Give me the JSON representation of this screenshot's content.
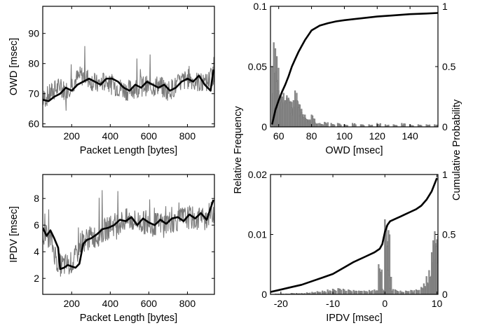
{
  "chart_data": [
    {
      "id": "owd-vs-length",
      "type": "line",
      "xlabel": "Packet Length [bytes]",
      "ylabel": "OWD [msec]",
      "xlim": [
        50,
        940
      ],
      "ylim": [
        59,
        99
      ],
      "xticks": [
        200,
        400,
        600,
        800
      ],
      "yticks": [
        60,
        70,
        80,
        90
      ],
      "grid": false,
      "legend": "none",
      "series": [
        {
          "role": "raw",
          "x": [
            50,
            90,
            130,
            170,
            210,
            250,
            290,
            330,
            370,
            410,
            450,
            490,
            530,
            570,
            610,
            650,
            690,
            730,
            770,
            810,
            850,
            890,
            930
          ],
          "values": [
            68,
            70,
            72,
            71,
            74,
            76,
            75,
            73,
            74,
            73,
            72,
            71,
            72,
            73,
            72,
            73,
            71,
            72,
            74,
            75,
            74,
            73,
            76
          ],
          "spread": 7
        },
        {
          "role": "mean",
          "x": [
            50,
            80,
            110,
            140,
            170,
            200,
            230,
            260,
            290,
            320,
            350,
            380,
            410,
            440,
            470,
            500,
            530,
            560,
            590,
            620,
            650,
            680,
            710,
            740,
            770,
            800,
            830,
            860,
            890,
            920,
            935
          ],
          "values": [
            68,
            67.5,
            69,
            70,
            72,
            71,
            73,
            74,
            75,
            74,
            73,
            75,
            75,
            74,
            72,
            71,
            73,
            72,
            74,
            73,
            72,
            73,
            71,
            72,
            74,
            75,
            74,
            76,
            73,
            71,
            78
          ]
        }
      ]
    },
    {
      "id": "ipdv-vs-length",
      "type": "line",
      "xlabel": "Packet Length [bytes]",
      "ylabel": "IPDV [msec]",
      "xlim": [
        50,
        940
      ],
      "ylim": [
        0.8,
        9.8
      ],
      "xticks": [
        200,
        400,
        600,
        800
      ],
      "yticks": [
        2,
        4,
        6,
        8
      ],
      "grid": false,
      "legend": "none",
      "series": [
        {
          "role": "raw",
          "x": [
            50,
            90,
            130,
            170,
            210,
            250,
            290,
            330,
            370,
            410,
            450,
            490,
            530,
            570,
            610,
            650,
            690,
            730,
            770,
            810,
            850,
            890,
            930
          ],
          "values": [
            5.5,
            5.0,
            3.0,
            3.0,
            3.2,
            4.8,
            5.0,
            5.2,
            5.6,
            6.0,
            6.2,
            6.4,
            6.3,
            6.2,
            6.0,
            6.1,
            6.2,
            6.3,
            6.5,
            6.6,
            6.4,
            6.5,
            7.0
          ],
          "spread": 1.8
        },
        {
          "role": "mean",
          "x": [
            50,
            70,
            90,
            110,
            130,
            140,
            160,
            180,
            200,
            220,
            240,
            260,
            280,
            300,
            330,
            360,
            390,
            420,
            450,
            480,
            510,
            540,
            570,
            600,
            630,
            660,
            690,
            720,
            750,
            780,
            810,
            840,
            870,
            900,
            935
          ],
          "values": [
            5.8,
            5.2,
            5.6,
            5.0,
            4.3,
            2.7,
            2.8,
            3.0,
            2.9,
            2.8,
            3.1,
            4.6,
            4.9,
            5.0,
            5.3,
            5.7,
            5.8,
            6.0,
            6.4,
            6.3,
            6.6,
            6.0,
            6.5,
            6.2,
            6.0,
            6.4,
            6.1,
            6.5,
            6.6,
            6.3,
            6.8,
            6.5,
            6.9,
            6.4,
            7.9
          ]
        }
      ]
    },
    {
      "id": "owd-distribution",
      "type": "bar",
      "xlabel": "OWD [msec]",
      "ylabel": "Relative Frequency",
      "ylabel_right": "Cumulative Probability",
      "xlim": [
        55,
        157
      ],
      "ylim": [
        0,
        0.1
      ],
      "ylim_right": [
        0,
        1
      ],
      "xticks": [
        60,
        80,
        100,
        120,
        140
      ],
      "yticks": [
        0,
        0.05,
        0.1
      ],
      "yticks_right": [
        0,
        0.5,
        1
      ],
      "grid": false,
      "legend": "none",
      "bars": {
        "x": [
          56,
          57,
          58,
          59,
          60,
          61,
          62,
          63,
          64,
          65,
          66,
          67,
          68,
          69,
          70,
          71,
          72,
          73,
          74,
          75,
          76,
          77,
          78,
          79,
          80,
          82,
          85,
          88,
          92,
          96,
          100,
          105,
          110,
          115,
          120,
          125,
          130,
          135,
          140,
          145,
          150,
          155
        ],
        "values": [
          0.05,
          0.07,
          0.065,
          0.03,
          0.03,
          0.026,
          0.025,
          0.028,
          0.022,
          0.026,
          0.024,
          0.02,
          0.016,
          0.022,
          0.03,
          0.028,
          0.016,
          0.014,
          0.012,
          0.008,
          0.01,
          0.006,
          0.005,
          0.006,
          0.01,
          0.004,
          0.003,
          0.004,
          0.003,
          0.003,
          0.002,
          0.003,
          0.002,
          0.002,
          0.003,
          0.002,
          0.002,
          0.003,
          0.002,
          0.002,
          0.002,
          0.002
        ]
      },
      "cdf": {
        "x": [
          56,
          57,
          58,
          60,
          62,
          64,
          66,
          68,
          70,
          72,
          74,
          76,
          78,
          80,
          85,
          90,
          95,
          100,
          110,
          120,
          130,
          140,
          150,
          157
        ],
        "values": [
          0.02,
          0.08,
          0.14,
          0.22,
          0.29,
          0.35,
          0.42,
          0.5,
          0.56,
          0.62,
          0.67,
          0.72,
          0.76,
          0.8,
          0.84,
          0.86,
          0.875,
          0.885,
          0.9,
          0.915,
          0.925,
          0.935,
          0.94,
          0.945
        ]
      }
    },
    {
      "id": "ipdv-distribution",
      "type": "bar",
      "xlabel": "IPDV [msec]",
      "ylabel": "Relative Frequency",
      "ylabel_right": "Cumulative Probability",
      "xlim": [
        -22,
        10.2
      ],
      "ylim": [
        0,
        0.02
      ],
      "ylim_right": [
        0,
        1
      ],
      "xticks": [
        -20,
        -10,
        0,
        10
      ],
      "yticks": [
        0,
        0.01,
        0.02
      ],
      "yticks_right": [
        0,
        0.5,
        1
      ],
      "grid": false,
      "legend": "none",
      "bars": {
        "x": [
          -21,
          -20,
          -19,
          -18,
          -17,
          -16,
          -15,
          -14,
          -13,
          -12,
          -11,
          -10,
          -9,
          -8,
          -7,
          -6,
          -5,
          -4,
          -3,
          -2,
          -1.2,
          -0.5,
          0,
          0.3,
          0.6,
          1,
          2,
          3,
          4,
          5,
          6,
          7,
          7.5,
          8,
          8.5,
          9,
          9.3,
          9.6,
          9.9
        ],
        "values": [
          0.0001,
          0.0001,
          0.0001,
          0.0002,
          0.0002,
          0.0002,
          0.0003,
          0.0004,
          0.0005,
          0.0006,
          0.0008,
          0.0009,
          0.001,
          0.0009,
          0.0008,
          0.0007,
          0.0006,
          0.0006,
          0.0007,
          0.0008,
          0.005,
          0.0009,
          0.0125,
          0.0115,
          0.004,
          0.001,
          0.0008,
          0.0006,
          0.0006,
          0.0007,
          0.0008,
          0.0012,
          0.0018,
          0.003,
          0.004,
          0.007,
          0.009,
          0.0105,
          0.008
        ]
      },
      "cdf": {
        "x": [
          -22,
          -20,
          -18,
          -16,
          -14,
          -12,
          -10,
          -8,
          -6,
          -4,
          -2,
          -1,
          -0.5,
          0,
          0.5,
          1,
          2,
          3,
          4,
          5,
          6,
          7,
          8,
          9,
          10
        ],
        "values": [
          0.02,
          0.04,
          0.06,
          0.08,
          0.11,
          0.14,
          0.17,
          0.22,
          0.27,
          0.31,
          0.35,
          0.38,
          0.42,
          0.52,
          0.58,
          0.61,
          0.63,
          0.65,
          0.67,
          0.69,
          0.71,
          0.74,
          0.79,
          0.86,
          0.97
        ]
      }
    }
  ]
}
